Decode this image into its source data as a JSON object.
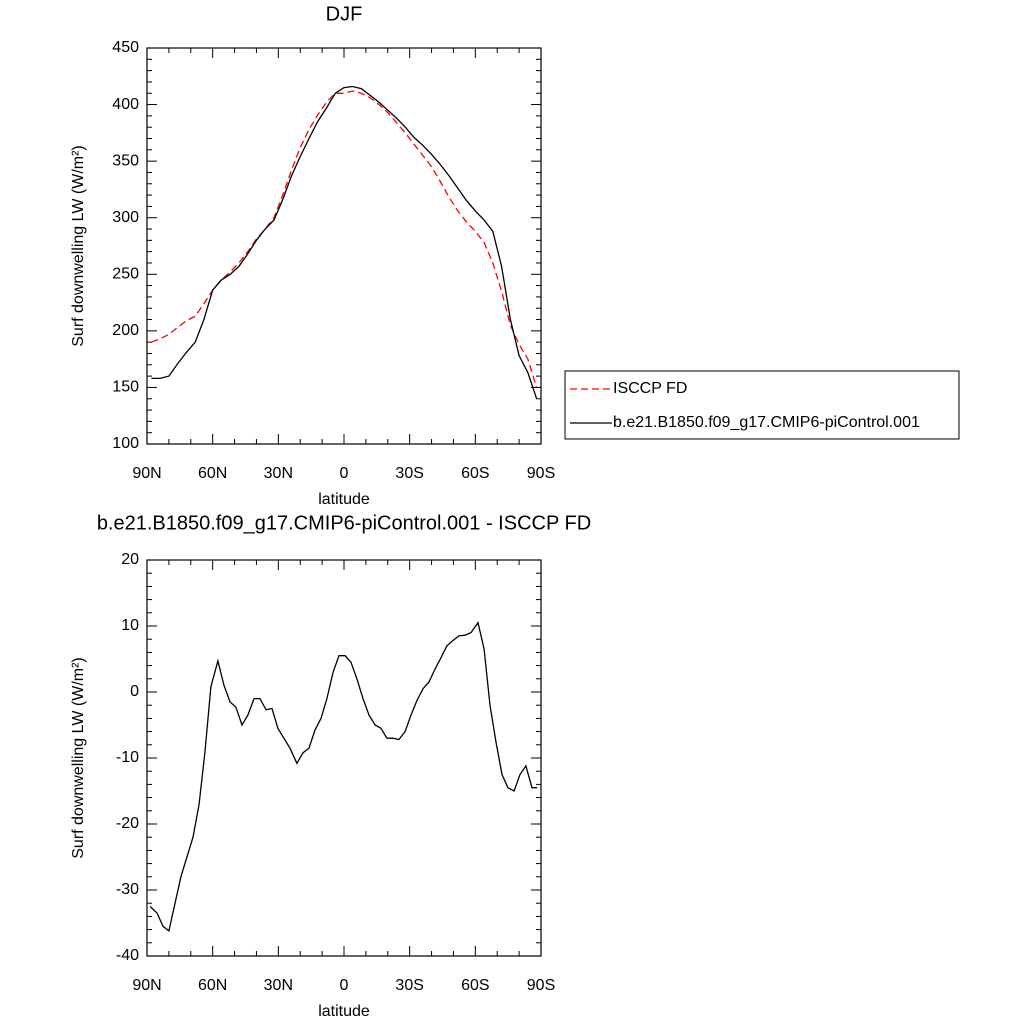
{
  "chart_data": [
    {
      "type": "line",
      "title": "DJF",
      "xlabel": "latitude",
      "ylabel": "Surf downwelling LW (W/m²)",
      "x": [
        88,
        84,
        80,
        76,
        72,
        68,
        64,
        60,
        56,
        52,
        48,
        44,
        40,
        36,
        32,
        28,
        24,
        20,
        16,
        12,
        8,
        4,
        0,
        -4,
        -8,
        -12,
        -16,
        -20,
        -24,
        -28,
        -32,
        -36,
        -40,
        -44,
        -48,
        -52,
        -56,
        -60,
        -64,
        -68,
        -72,
        -76,
        -80,
        -84,
        -88
      ],
      "series": [
        {
          "name": "ISCCP FD",
          "color": "#ff0000",
          "dashed": true,
          "values": [
            190,
            193,
            197,
            203,
            209,
            213,
            224,
            236,
            245,
            252,
            260,
            270,
            281,
            290,
            300,
            320,
            342,
            362,
            378,
            391,
            402,
            410,
            410,
            412,
            410,
            406,
            400,
            393,
            384,
            375,
            365,
            355,
            345,
            332,
            318,
            306,
            296,
            288,
            278,
            260,
            235,
            205,
            188,
            175,
            150
          ]
        },
        {
          "name": "b.e21.B1850.f09_g17.CMIP6-piControl.001",
          "color": "#000000",
          "dashed": false,
          "values": [
            158,
            158,
            160,
            171,
            181,
            190,
            210,
            236,
            245,
            250,
            257,
            268,
            280,
            290,
            298,
            316,
            337,
            354,
            370,
            385,
            397,
            410,
            415,
            416,
            414,
            408,
            402,
            395,
            388,
            380,
            371,
            364,
            356,
            347,
            337,
            326,
            315,
            306,
            298,
            288,
            257,
            210,
            178,
            163,
            140
          ]
        }
      ],
      "xlim": [
        90,
        -90
      ],
      "xticks": [
        {
          "value": 90,
          "label": "90N"
        },
        {
          "value": 60,
          "label": "60N"
        },
        {
          "value": 30,
          "label": "30N"
        },
        0,
        {
          "value": -30,
          "label": "30S"
        },
        {
          "value": -60,
          "label": "60S"
        },
        {
          "value": -90,
          "label": "90S"
        }
      ],
      "ylim": [
        100,
        450
      ],
      "yticks": [
        100,
        150,
        200,
        250,
        300,
        350,
        400,
        450
      ],
      "legend": "right"
    },
    {
      "type": "line",
      "title": "b.e21.B1850.f09_g17.CMIP6-piControl.001 - ISCCP FD",
      "xlabel": "latitude",
      "ylabel": "Surf downwelling LW (W/m²)",
      "x": [
        88.6,
        85.4,
        82.7,
        80.0,
        74.5,
        69,
        66.2,
        63.5,
        60.8,
        57.6,
        54.8,
        52.1,
        49.4,
        46.6,
        43.9,
        41.1,
        38.4,
        35.6,
        32.9,
        30.2,
        24.7,
        21.5,
        18.7,
        16,
        13.3,
        10.5,
        7.8,
        5,
        2.3,
        -0.5,
        -3.2,
        -5.9,
        -8.7,
        -11.4,
        -14.2,
        -16.9,
        -19.6,
        -22.4,
        -25.1,
        -27.9,
        -30.6,
        -33.3,
        -36.1,
        -38.8,
        -41.6,
        -44.3,
        -47,
        -49.8,
        -52.5,
        -55.3,
        -58,
        -61.2,
        -64,
        -66.7,
        -69.4,
        -72.2,
        -74.9,
        -77.7,
        -80.4,
        -83.1,
        -85.9,
        -88.2
      ],
      "values": [
        -32.5,
        -33.5,
        -35.5,
        -36.2,
        -28,
        -22,
        -17,
        -9,
        0.8,
        4.7,
        1,
        -1.5,
        -2.3,
        -5,
        -3.5,
        -1,
        -1,
        -2.7,
        -2.5,
        -5.5,
        -8.5,
        -10.8,
        -9.2,
        -8.5,
        -5.8,
        -4,
        -1,
        3,
        5.5,
        5.5,
        4.5,
        2,
        -1,
        -3.5,
        -5,
        -5.5,
        -7,
        -7,
        -7.2,
        -6,
        -3.5,
        -1.3,
        0.5,
        1.5,
        3.5,
        5.2,
        7,
        7.8,
        8.5,
        8.6,
        9,
        10.5,
        6.5,
        -2,
        -7.5,
        -12.5,
        -14.5,
        -15,
        -12.5,
        -11.2,
        -14.5,
        -14.5
      ],
      "color": "#000000",
      "xlim": [
        90,
        -90
      ],
      "xticks": [
        {
          "value": 90,
          "label": "90N"
        },
        {
          "value": 60,
          "label": "60N"
        },
        {
          "value": 30,
          "label": "30N"
        },
        0,
        {
          "value": -30,
          "label": "30S"
        },
        {
          "value": -60,
          "label": "60S"
        },
        {
          "value": -90,
          "label": "90S"
        }
      ],
      "ylim": [
        -40,
        20
      ],
      "yticks": [
        -40,
        -30,
        -20,
        -10,
        0,
        10,
        20
      ]
    }
  ]
}
